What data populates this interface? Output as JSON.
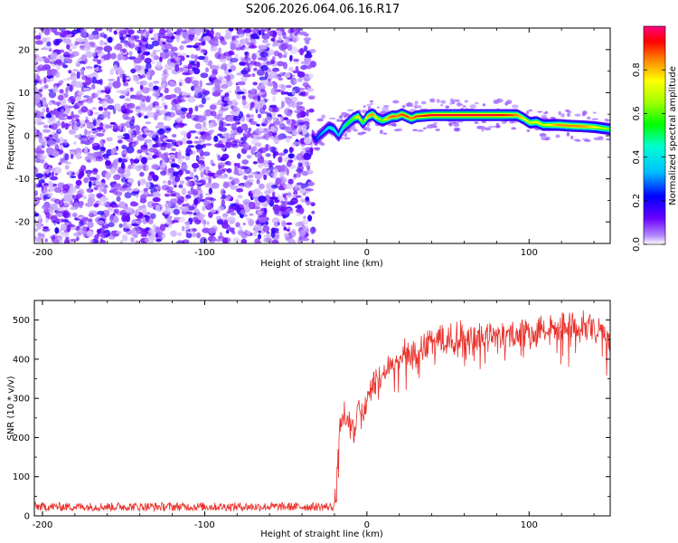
{
  "title": "S206.2026.064.06.16.R17",
  "chart_data": [
    {
      "type": "heatmap",
      "name": "spectrogram",
      "xlabel": "Height of straight line (km)",
      "ylabel": "Frequency (Hz)",
      "xlim": [
        -205,
        150
      ],
      "ylim": [
        -25,
        25
      ],
      "xticks": [
        -200,
        -100,
        0,
        100
      ],
      "yticks": [
        -20,
        -10,
        0,
        10,
        20
      ],
      "noise_region_km": [
        -205,
        -32
      ],
      "track": {
        "x_km": [
          -34,
          -32,
          -30,
          -27,
          -24,
          -21,
          -18,
          -15,
          -12,
          -9,
          -6,
          -3,
          0,
          3,
          6,
          9,
          12,
          15,
          18,
          21,
          24,
          27,
          30,
          40,
          50,
          60,
          70,
          80,
          88,
          92,
          96,
          100,
          104,
          108,
          112,
          118,
          125,
          132,
          140,
          150
        ],
        "freq_hz": [
          0,
          -1,
          0,
          1,
          2,
          1.5,
          0,
          2,
          3,
          4,
          4.5,
          3,
          4.5,
          5,
          4,
          3.5,
          4,
          4.5,
          4.5,
          5,
          4.5,
          4,
          4.5,
          4.8,
          4.8,
          4.8,
          4.8,
          4.8,
          4.8,
          4.8,
          4,
          3,
          3.2,
          2.5,
          2.5,
          2.5,
          2.3,
          2.2,
          2,
          1.5
        ],
        "amplitude": [
          0.15,
          0.25,
          0.3,
          0.35,
          0.4,
          0.45,
          0.35,
          0.5,
          0.55,
          0.6,
          0.8,
          0.55,
          0.8,
          0.85,
          0.7,
          0.6,
          0.8,
          0.9,
          0.85,
          0.9,
          0.9,
          0.85,
          0.9,
          0.95,
          0.95,
          0.95,
          0.95,
          0.95,
          0.9,
          0.85,
          0.75,
          0.7,
          0.75,
          0.7,
          0.75,
          0.85,
          0.85,
          0.85,
          0.75,
          0.6
        ]
      },
      "colorbar": {
        "label": "Normalized spectral amplitude",
        "range": [
          0,
          1
        ],
        "ticks": [
          "0.0",
          "0.2",
          "0.4",
          "0.6",
          "0.8"
        ],
        "tick_values": [
          0,
          0.2,
          0.4,
          0.6,
          0.8
        ],
        "colormap": "rainbow"
      }
    },
    {
      "type": "line",
      "name": "snr",
      "xlabel": "Height of straight line (km)",
      "ylabel": "SNR (10 * v/v)",
      "xlim": [
        -205,
        150
      ],
      "ylim": [
        0,
        550
      ],
      "xticks": [
        -200,
        -100,
        0,
        100
      ],
      "yticks": [
        0,
        100,
        200,
        300,
        400,
        500
      ],
      "series": [
        {
          "name": "SNR",
          "color": "#e8302a",
          "x_km": [
            -205,
            -100,
            -20,
            -19,
            -18,
            -17,
            -15,
            -12,
            -10,
            -8,
            -5,
            -2,
            0,
            5,
            10,
            15,
            20,
            30,
            40,
            50,
            60,
            70,
            80,
            90,
            100,
            110,
            120,
            130,
            140,
            150
          ],
          "y": [
            20,
            20,
            20,
            70,
            180,
            230,
            270,
            260,
            240,
            220,
            300,
            280,
            320,
            360,
            380,
            400,
            420,
            440,
            460,
            465,
            470,
            470,
            475,
            480,
            485,
            490,
            495,
            495,
            500,
            470
          ]
        }
      ]
    }
  ]
}
